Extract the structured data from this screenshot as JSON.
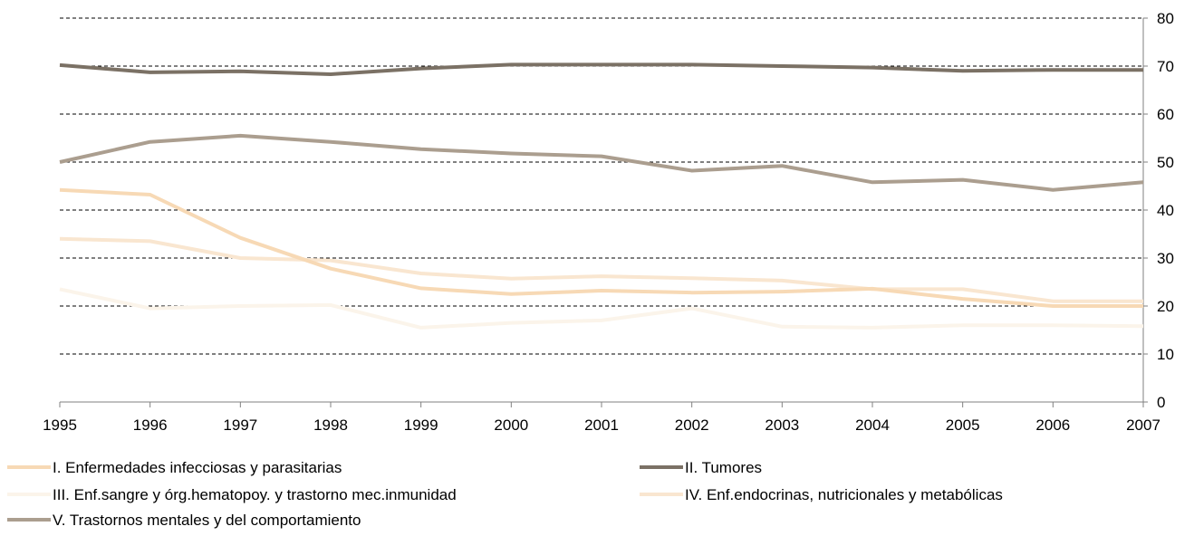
{
  "chart_data": {
    "type": "line",
    "x": [
      "1995",
      "1996",
      "1997",
      "1998",
      "1999",
      "2000",
      "2001",
      "2002",
      "2003",
      "2004",
      "2005",
      "2006",
      "2007"
    ],
    "ylim": [
      0,
      80
    ],
    "yticks": [
      "0",
      "10",
      "20",
      "30",
      "40",
      "50",
      "60",
      "70",
      "80"
    ],
    "y_axis_side": "right",
    "grid": "horizontal-dashed",
    "legend_position": "bottom",
    "series": [
      {
        "name": "I. Enfermedades infecciosas y parasitarias",
        "color": "#f7d9b5",
        "values": [
          44.2,
          43.2,
          34.2,
          27.8,
          23.7,
          22.5,
          23.2,
          22.8,
          23.0,
          23.6,
          21.5,
          20.0,
          20.0
        ]
      },
      {
        "name": "II. Tumores",
        "color": "#7b7165",
        "values": [
          70.2,
          68.7,
          68.9,
          68.3,
          69.5,
          70.3,
          70.3,
          70.3,
          70.0,
          69.7,
          69.0,
          69.2,
          69.2
        ]
      },
      {
        "name": "III. Enf.sangre y órg.hematopoy. y trastorno mec.inmunidad",
        "color": "#fbf4ea",
        "values": [
          23.5,
          19.5,
          20.0,
          20.2,
          15.5,
          16.5,
          17.0,
          19.5,
          15.7,
          15.5,
          16.0,
          16.0,
          15.8
        ]
      },
      {
        "name": "IV. Enf.endocrinas, nutricionales y metabólicas",
        "color": "#f9e6d0",
        "values": [
          34.0,
          33.5,
          30.0,
          29.5,
          26.8,
          25.7,
          26.2,
          25.8,
          25.3,
          23.5,
          23.5,
          21.0,
          21.0
        ]
      },
      {
        "name": "V. Trastornos mentales y del comportamiento",
        "color": "#ab9e8f",
        "values": [
          50.0,
          54.2,
          55.5,
          54.2,
          52.7,
          51.8,
          51.2,
          48.2,
          49.2,
          45.8,
          46.3,
          44.2,
          45.8
        ]
      }
    ]
  }
}
